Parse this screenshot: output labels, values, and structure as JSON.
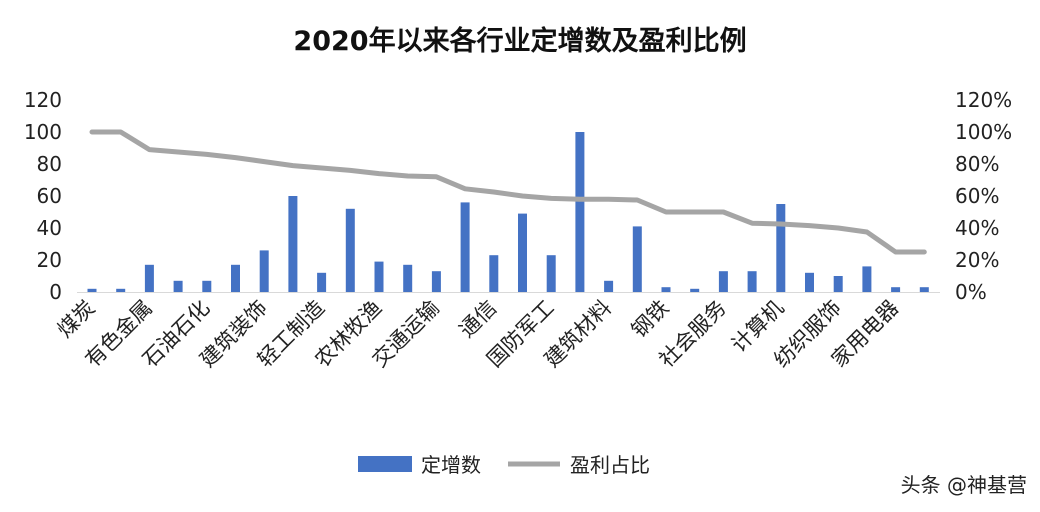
{
  "chart_data": {
    "type": "bar",
    "title": "2020年以来各行业定增数及盈利比例",
    "categories": [
      "煤炭",
      "",
      "有色金属",
      "",
      "石油石化",
      "",
      "建筑装饰",
      "",
      "轻工制造",
      "",
      "农林牧渔",
      "",
      "交通运输",
      "",
      "通信",
      "",
      "国防军工",
      "",
      "建筑材料",
      "",
      "钢铁",
      "",
      "社会服务",
      "",
      "计算机",
      "",
      "纺织服饰",
      "",
      "家用电器",
      ""
    ],
    "y_ticks": [
      "0",
      "20",
      "40",
      "60",
      "80",
      "100",
      "120"
    ],
    "y2_ticks": [
      "0%",
      "20%",
      "40%",
      "60%",
      "80%",
      "100%",
      "120%"
    ],
    "ylim": [
      0,
      120
    ],
    "y2lim": [
      0,
      1.2
    ],
    "series": [
      {
        "name": "定增数",
        "type": "bar",
        "axis": "left",
        "color": "#4472C4",
        "values": [
          2,
          2,
          17,
          7,
          7,
          17,
          26,
          60,
          12,
          52,
          19,
          17,
          13,
          56,
          23,
          49,
          23,
          100,
          7,
          41,
          3,
          2,
          13,
          13,
          55,
          12,
          10,
          16,
          3,
          3
        ]
      },
      {
        "name": "盈利占比",
        "type": "line",
        "axis": "right",
        "color": "#A5A5A5",
        "values": [
          1.0,
          1.0,
          0.89,
          0.875,
          0.86,
          0.84,
          0.815,
          0.79,
          0.775,
          0.76,
          0.74,
          0.725,
          0.72,
          0.645,
          0.625,
          0.6,
          0.585,
          0.58,
          0.58,
          0.575,
          0.5,
          0.5,
          0.5,
          0.43,
          0.425,
          0.415,
          0.4,
          0.375,
          0.25,
          0.25
        ]
      }
    ],
    "legend": {
      "position": "bottom",
      "items": [
        "定增数",
        "盈利占比"
      ]
    },
    "grid": false
  },
  "watermark": "头条 @神基营"
}
